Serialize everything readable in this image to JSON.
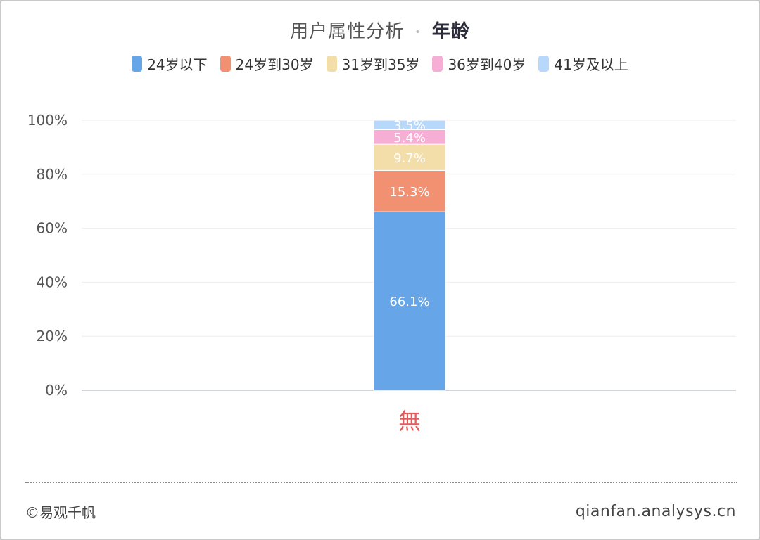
{
  "header": {
    "title": "用户属性分析",
    "subtitle": "年龄",
    "separator": "•"
  },
  "colors": {
    "under_24": "#66a6e8",
    "24_30": "#f29172",
    "31_35": "#f3dda9",
    "36_40": "#f7aed4",
    "41_plus": "#b8d8fb",
    "watermark": "#e65a5a"
  },
  "chart_data": {
    "type": "bar",
    "stacked": true,
    "percent": true,
    "categories": [
      "無"
    ],
    "series": [
      {
        "name": "24岁以下",
        "values": [
          66.1
        ],
        "label": "66.1%",
        "color": "#66a6e8"
      },
      {
        "name": "24岁到30岁",
        "values": [
          15.3
        ],
        "label": "15.3%",
        "color": "#f29172"
      },
      {
        "name": "31岁到35岁",
        "values": [
          9.7
        ],
        "label": "9.7%",
        "color": "#f3dda9"
      },
      {
        "name": "36岁到40岁",
        "values": [
          5.4
        ],
        "label": "5.4%",
        "color": "#f7aed4"
      },
      {
        "name": "41岁及以上",
        "values": [
          3.5
        ],
        "label": "3.5%",
        "color": "#b8d8fb"
      }
    ],
    "ylim": [
      0,
      100
    ],
    "yticks": [
      "0%",
      "20%",
      "40%",
      "60%",
      "80%",
      "100%"
    ],
    "grid": true,
    "legend": "top-center"
  },
  "footer": {
    "copyright": "©易观千帆",
    "site": "qianfan.analysys.cn"
  }
}
